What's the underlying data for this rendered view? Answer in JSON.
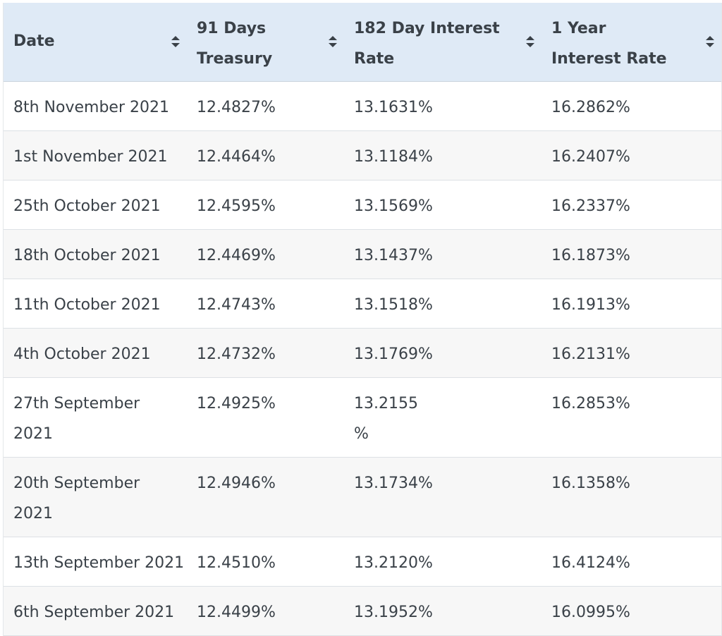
{
  "table": {
    "headers": [
      {
        "key": "date",
        "label": "Date",
        "sort_icon": "sort-icon"
      },
      {
        "key": "t91",
        "label": "91 Days Treasury",
        "sort_icon": "sort-icon"
      },
      {
        "key": "t182",
        "label": "182 Day Interest Rate",
        "sort_icon": "sort-icon"
      },
      {
        "key": "t1y",
        "label": "1 Year Interest Rate",
        "sort_icon": "sort-icon"
      }
    ],
    "rows": [
      {
        "date": "8th November 2021",
        "t91": "12.4827%",
        "t182": "13.1631%",
        "t1y": "16.2862%"
      },
      {
        "date": "1st November 2021",
        "t91": "12.4464%",
        "t182": "13.1184%",
        "t1y": "16.2407%"
      },
      {
        "date": "25th October 2021",
        "t91": "12.4595%",
        "t182": "13.1569%",
        "t1y": "16.2337%"
      },
      {
        "date": "18th October 2021",
        "t91": "12.4469%",
        "t182": "13.1437%",
        "t1y": "16.1873%"
      },
      {
        "date": "11th October 2021",
        "t91": "12.4743%",
        "t182": "13.1518%",
        "t1y": "16.1913%"
      },
      {
        "date": "4th October 2021",
        "t91": "12.4732%",
        "t182": "13.1769%",
        "t1y": "16.2131%"
      },
      {
        "date": "27th September 2021",
        "t91": "12.4925%",
        "t182": "13.2155 %",
        "t1y": "16.2853%"
      },
      {
        "date": "20th September 2021",
        "t91": "12.4946%",
        "t182": "13.1734%",
        "t1y": "16.1358%"
      },
      {
        "date": "13th September 2021",
        "t91": "12.4510%",
        "t182": "13.2120%",
        "t1y": "16.4124%"
      },
      {
        "date": "6th September 2021",
        "t91": "12.4499%",
        "t182": "13.1952%",
        "t1y": "16.0995%"
      }
    ]
  },
  "colors": {
    "header_bg": "#dfeaf6",
    "row_alt_bg": "#f7f7f7",
    "text": "#3a4148",
    "border": "#dde1e5"
  }
}
